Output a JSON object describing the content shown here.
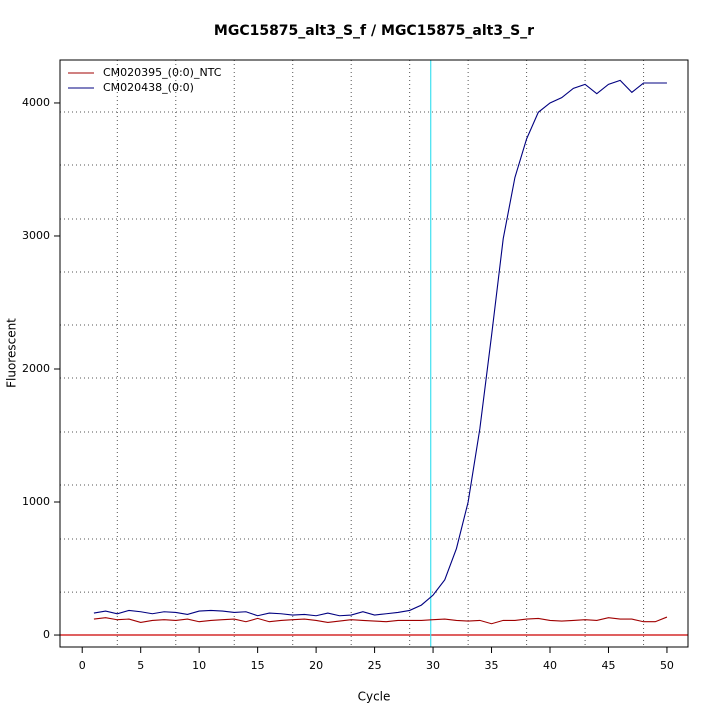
{
  "chart_data": {
    "type": "line",
    "title": "MGC15875_alt3_S_f / MGC15875_alt3_S_r",
    "x_label": "Cycle",
    "y_label": "Fluorescent",
    "x": [
      1,
      2,
      3,
      4,
      5,
      6,
      7,
      8,
      9,
      10,
      11,
      12,
      13,
      14,
      15,
      16,
      17,
      18,
      19,
      20,
      21,
      22,
      23,
      24,
      25,
      26,
      27,
      28,
      29,
      30,
      31,
      32,
      33,
      34,
      35,
      36,
      37,
      38,
      39,
      40,
      41,
      42,
      43,
      44,
      45,
      46,
      47,
      48,
      49,
      50
    ],
    "series": [
      {
        "name": "CM020395_(0:0)_NTC",
        "color": "#a00000",
        "values": [
          120,
          130,
          115,
          120,
          95,
          110,
          115,
          110,
          120,
          100,
          110,
          115,
          120,
          100,
          125,
          100,
          110,
          115,
          120,
          110,
          95,
          105,
          115,
          110,
          105,
          100,
          110,
          110,
          110,
          115,
          120,
          110,
          105,
          110,
          85,
          110,
          110,
          120,
          125,
          110,
          105,
          110,
          115,
          110,
          130,
          120,
          120,
          100,
          100,
          135
        ]
      },
      {
        "name": "CM020438_(0:0)",
        "color": "#000080",
        "values": [
          165,
          180,
          160,
          185,
          175,
          160,
          175,
          170,
          155,
          180,
          185,
          180,
          170,
          175,
          145,
          165,
          160,
          150,
          155,
          145,
          165,
          145,
          150,
          175,
          150,
          160,
          170,
          185,
          225,
          300,
          415,
          650,
          1000,
          1550,
          2250,
          2980,
          3440,
          3730,
          3930,
          4000,
          4040,
          4110,
          4140,
          4070,
          4140,
          4170,
          4080,
          4150,
          4150,
          4150
        ]
      }
    ],
    "xlim": [
      -1.9,
      51.8
    ],
    "ylim": [
      -90,
      4323
    ],
    "xticks": [
      0,
      5,
      10,
      15,
      20,
      25,
      30,
      35,
      40,
      45,
      50
    ],
    "yticks": [
      0,
      1000,
      2000,
      3000,
      4000
    ],
    "x_grid": [
      3,
      8,
      13,
      18,
      23,
      28,
      33,
      38,
      43,
      48
    ],
    "y_grid": [
      323,
      722,
      1128,
      1526,
      1932,
      2331,
      2729,
      3128,
      3534,
      3932
    ],
    "threshold": 0,
    "threshold_color": "#cc0000",
    "cycle_line": 29.8,
    "cycle_line_color": "#40e0f0",
    "legend": "top-left"
  }
}
